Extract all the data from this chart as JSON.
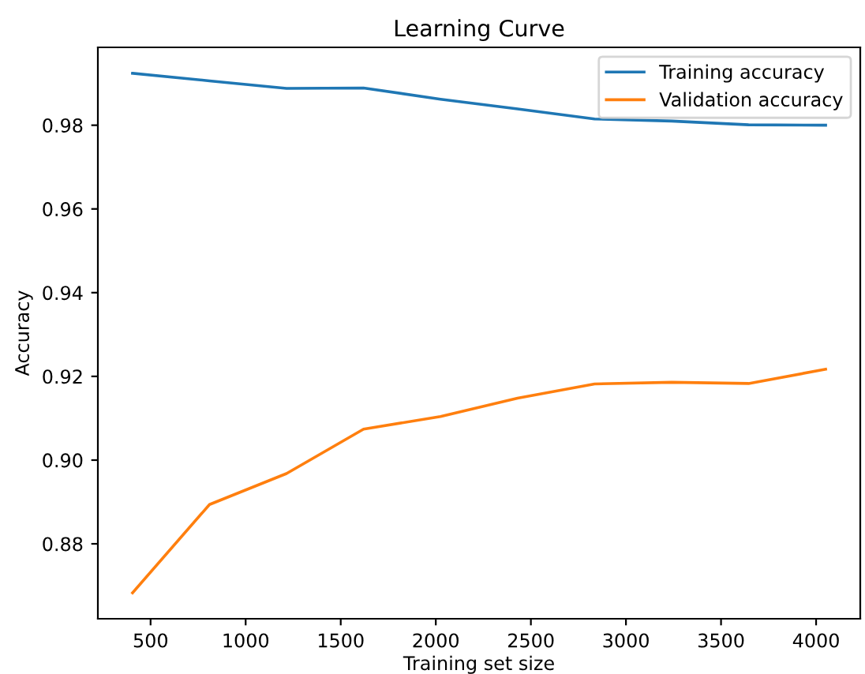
{
  "chart_data": {
    "type": "line",
    "title": "Learning Curve",
    "xlabel": "Training set size",
    "ylabel": "Accuracy",
    "x": [
      405,
      810,
      1215,
      1620,
      2025,
      2430,
      2835,
      3240,
      3645,
      4050
    ],
    "series": [
      {
        "name": "Training accuracy",
        "color": "#1f77b4",
        "values": [
          0.9924,
          0.9906,
          0.9888,
          0.9889,
          0.9862,
          0.9839,
          0.9815,
          0.981,
          0.9801,
          0.98
        ]
      },
      {
        "name": "Validation accuracy",
        "color": "#ff7f0e",
        "values": [
          0.8683,
          0.8894,
          0.8968,
          0.9074,
          0.9104,
          0.9148,
          0.9182,
          0.9186,
          0.9183,
          0.9217
        ]
      }
    ],
    "xlim": [
      222.75,
      4232.25
    ],
    "ylim": [
      0.8621,
      0.9986
    ],
    "xticks": [
      500,
      1000,
      1500,
      2000,
      2500,
      3000,
      3500,
      4000
    ],
    "yticks": [
      {
        "value": 0.88,
        "label": "0.88"
      },
      {
        "value": 0.9,
        "label": "0.90"
      },
      {
        "value": 0.92,
        "label": "0.92"
      },
      {
        "value": 0.94,
        "label": "0.94"
      },
      {
        "value": 0.96,
        "label": "0.96"
      },
      {
        "value": 0.98,
        "label": "0.98"
      }
    ],
    "legend": "top right",
    "grid": false,
    "marker": "none",
    "line_style": "solid"
  }
}
